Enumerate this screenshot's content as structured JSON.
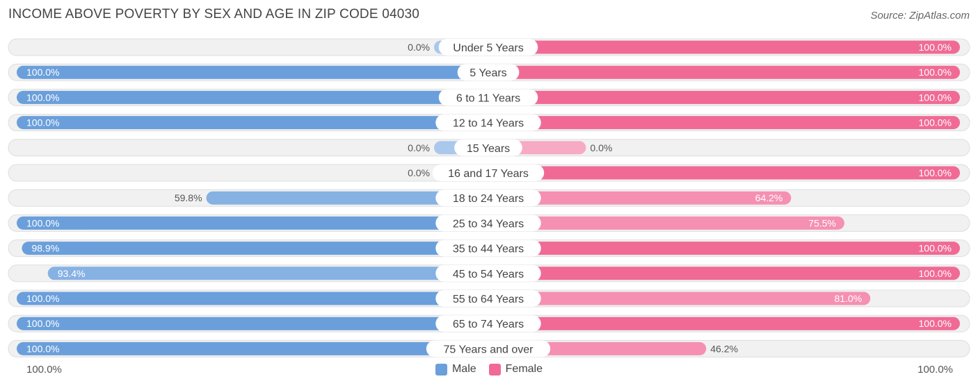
{
  "header": {
    "title": "INCOME ABOVE POVERTY BY SEX AND AGE IN ZIP CODE 04030",
    "source": "Source: ZipAtlas.com"
  },
  "colors": {
    "male": "#6a9fdb",
    "male_light": "#a9c8ec",
    "female": "#f06a95",
    "female_light": "#f7aac4",
    "track": "#eeeeee"
  },
  "axis": {
    "left_label": "100.0%",
    "right_label": "100.0%"
  },
  "legend": {
    "male_label": "Male",
    "female_label": "Female"
  },
  "chart_data": {
    "type": "bar",
    "orientation": "horizontal-diverging",
    "title": "INCOME ABOVE POVERTY BY SEX AND AGE IN ZIP CODE 04030",
    "xlim": [
      -100,
      100
    ],
    "categories": [
      "Under 5 Years",
      "5 Years",
      "6 to 11 Years",
      "12 to 14 Years",
      "15 Years",
      "16 and 17 Years",
      "18 to 24 Years",
      "25 to 34 Years",
      "35 to 44 Years",
      "45 to 54 Years",
      "55 to 64 Years",
      "65 to 74 Years",
      "75 Years and over"
    ],
    "series": [
      {
        "name": "Male",
        "values": [
          0.0,
          100.0,
          100.0,
          100.0,
          0.0,
          0.0,
          59.8,
          100.0,
          98.9,
          93.4,
          100.0,
          100.0,
          100.0
        ],
        "labels": [
          "0.0%",
          "100.0%",
          "100.0%",
          "100.0%",
          "0.0%",
          "0.0%",
          "59.8%",
          "100.0%",
          "98.9%",
          "93.4%",
          "100.0%",
          "100.0%",
          "100.0%"
        ]
      },
      {
        "name": "Female",
        "values": [
          100.0,
          100.0,
          100.0,
          100.0,
          0.0,
          100.0,
          64.2,
          75.5,
          100.0,
          100.0,
          81.0,
          100.0,
          46.2
        ],
        "labels": [
          "100.0%",
          "100.0%",
          "100.0%",
          "100.0%",
          "0.0%",
          "100.0%",
          "64.2%",
          "75.5%",
          "100.0%",
          "100.0%",
          "81.0%",
          "100.0%",
          "46.2%"
        ]
      }
    ],
    "legend": [
      "Male",
      "Female"
    ],
    "legend_position": "bottom-center"
  }
}
